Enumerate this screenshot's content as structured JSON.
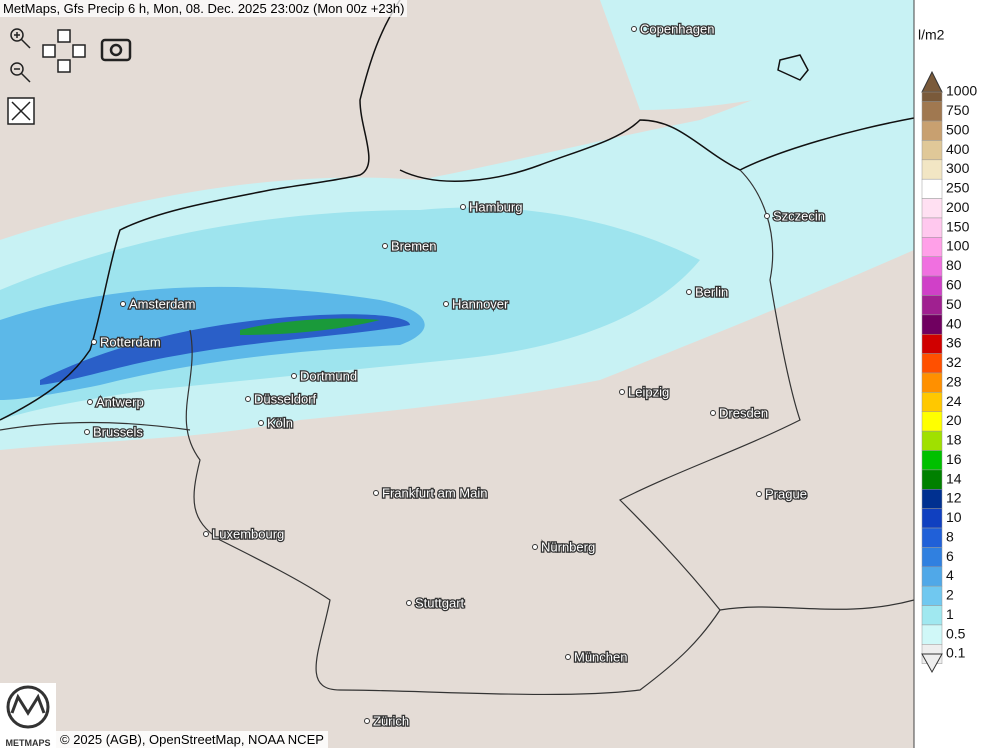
{
  "header": {
    "title": "MetMaps, Gfs Precip 6 h, Mon, 08. Dec. 2025 23:00z (Mon 00z +23h)"
  },
  "cities": [
    {
      "name": "Copenhagen"
    },
    {
      "name": "Hamburg"
    },
    {
      "name": "Szczecin"
    },
    {
      "name": "Bremen"
    },
    {
      "name": "Amsterdam"
    },
    {
      "name": "Hannover"
    },
    {
      "name": "Berlin"
    },
    {
      "name": "Rotterdam"
    },
    {
      "name": "Dortmund"
    },
    {
      "name": "Antwerp"
    },
    {
      "name": "Düsseldorf"
    },
    {
      "name": "Leipzig"
    },
    {
      "name": "Dresden"
    },
    {
      "name": "Brussels"
    },
    {
      "name": "Köln"
    },
    {
      "name": "Frankfurt am Main"
    },
    {
      "name": "Prague"
    },
    {
      "name": "Luxembourg"
    },
    {
      "name": "Nürnberg"
    },
    {
      "name": "Stuttgart"
    },
    {
      "name": "München"
    },
    {
      "name": "Zürich"
    }
  ],
  "legend": {
    "unit": "l/m2",
    "items": [
      {
        "label": "1000",
        "color": "#7a5a3a"
      },
      {
        "label": "750",
        "color": "#a07850"
      },
      {
        "label": "500",
        "color": "#c8a070"
      },
      {
        "label": "400",
        "color": "#e0c898"
      },
      {
        "label": "300",
        "color": "#f2e6c4"
      },
      {
        "label": "250",
        "color": "#ffffff"
      },
      {
        "label": "200",
        "color": "#ffe0f2"
      },
      {
        "label": "150",
        "color": "#ffc8ee"
      },
      {
        "label": "100",
        "color": "#ffa0e8"
      },
      {
        "label": "80",
        "color": "#f070e0"
      },
      {
        "label": "60",
        "color": "#d040c8"
      },
      {
        "label": "50",
        "color": "#a02090"
      },
      {
        "label": "40",
        "color": "#700060"
      },
      {
        "label": "36",
        "color": "#d00000"
      },
      {
        "label": "32",
        "color": "#ff5000"
      },
      {
        "label": "28",
        "color": "#ff9000"
      },
      {
        "label": "24",
        "color": "#ffc800"
      },
      {
        "label": "20",
        "color": "#ffff00"
      },
      {
        "label": "18",
        "color": "#a0e000"
      },
      {
        "label": "16",
        "color": "#00c000"
      },
      {
        "label": "14",
        "color": "#008000"
      },
      {
        "label": "12",
        "color": "#003090"
      },
      {
        "label": "10",
        "color": "#1040c0"
      },
      {
        "label": "8",
        "color": "#2060d8"
      },
      {
        "label": "6",
        "color": "#3080e0"
      },
      {
        "label": "4",
        "color": "#50a8e8"
      },
      {
        "label": "2",
        "color": "#70c8f0"
      },
      {
        "label": "1",
        "color": "#a0e8f0"
      },
      {
        "label": "0.5",
        "color": "#d0f8f8"
      },
      {
        "label": "0.1",
        "color": "#eeeeee"
      }
    ]
  },
  "logo": "METMAPS",
  "credit": "© 2025 (AGB), OpenStreetMap, NOAA NCEP"
}
